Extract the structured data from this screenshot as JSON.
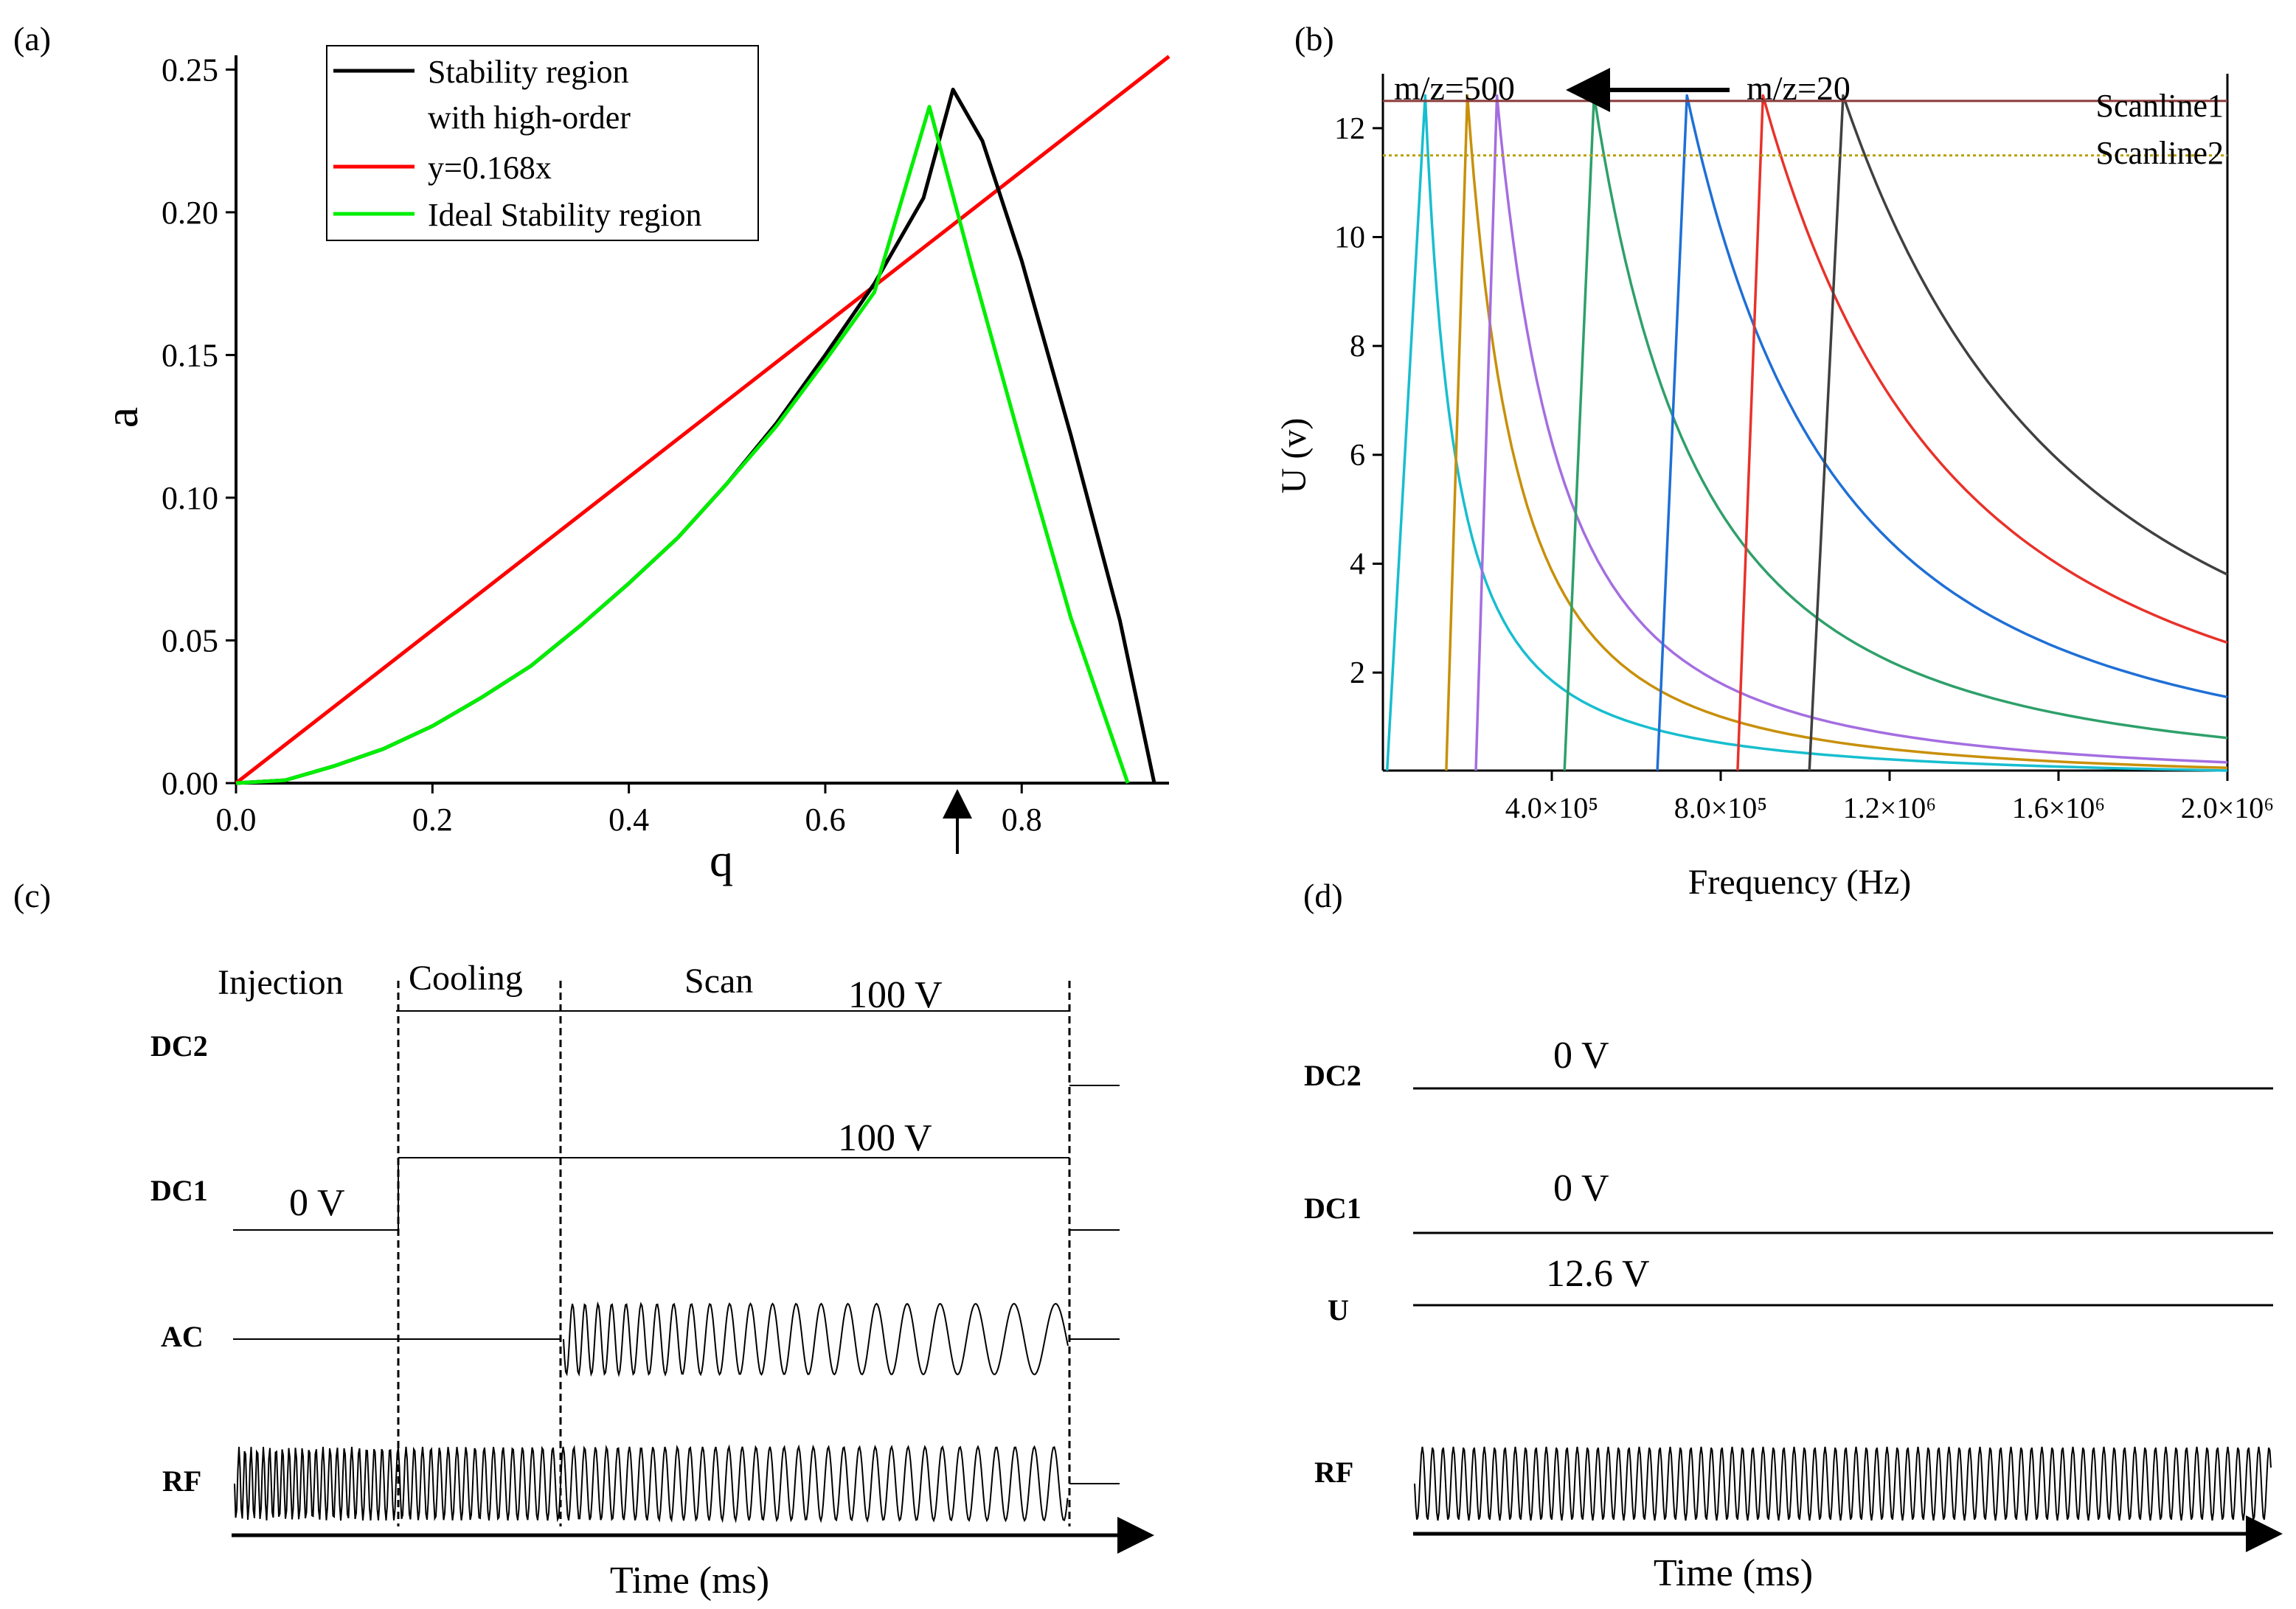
{
  "chart_data": [
    {
      "panel": "(a)",
      "type": "line",
      "xlabel": "q",
      "ylabel": "a",
      "xlim": [
        0,
        0.95
      ],
      "ylim": [
        0,
        0.255
      ],
      "xticks": [
        0.0,
        0.2,
        0.4,
        0.6,
        0.8
      ],
      "xtick_labels": [
        "0.0",
        "0.2",
        "0.4",
        "0.6",
        "0.8"
      ],
      "yticks": [
        0.0,
        0.05,
        0.1,
        0.15,
        0.2,
        0.25
      ],
      "ytick_labels": [
        "0.00",
        "0.05",
        "0.10",
        "0.15",
        "0.20",
        "0.25"
      ],
      "annotation": "arrow at q=0.74",
      "legend_position": "top-right",
      "series": [
        {
          "name": "Stability region with high-order",
          "legend_lines": [
            "Stability region",
            "with high-order"
          ],
          "color": "#000000",
          "x": [
            0.0,
            0.05,
            0.1,
            0.15,
            0.2,
            0.25,
            0.3,
            0.35,
            0.4,
            0.45,
            0.5,
            0.55,
            0.6,
            0.65,
            0.7,
            0.73,
            0.76,
            0.8,
            0.85,
            0.9,
            0.935
          ],
          "y": [
            0.0,
            0.001,
            0.006,
            0.012,
            0.02,
            0.03,
            0.041,
            0.055,
            0.07,
            0.086,
            0.105,
            0.126,
            0.15,
            0.175,
            0.205,
            0.243,
            0.225,
            0.183,
            0.122,
            0.057,
            0.0
          ]
        },
        {
          "name": "y=0.168x",
          "legend_lines": [
            "y=0.168x"
          ],
          "color": "#ff0000",
          "x": [
            0.0,
            0.95
          ],
          "y": [
            0.0,
            0.2546
          ]
        },
        {
          "name": "Ideal Stability region",
          "legend_lines": [
            "Ideal Stability region"
          ],
          "color": "#00ee00",
          "x": [
            0.0,
            0.05,
            0.1,
            0.15,
            0.2,
            0.25,
            0.3,
            0.35,
            0.4,
            0.45,
            0.5,
            0.55,
            0.6,
            0.65,
            0.706,
            0.75,
            0.8,
            0.85,
            0.908
          ],
          "y": [
            0.0,
            0.001,
            0.006,
            0.012,
            0.02,
            0.03,
            0.041,
            0.055,
            0.07,
            0.086,
            0.105,
            0.125,
            0.148,
            0.172,
            0.237,
            0.18,
            0.118,
            0.058,
            0.0
          ]
        }
      ]
    },
    {
      "panel": "(b)",
      "type": "line",
      "xlabel": "Frequency (Hz)",
      "ylabel": "U (v)",
      "xlim": [
        0.0,
        2000000
      ],
      "ylim": [
        0.2,
        13.0
      ],
      "xticks": [
        400000,
        800000,
        1200000,
        1600000,
        2000000
      ],
      "xtick_labels": [
        "4.0×10⁵",
        "8.0×10⁵",
        "1.2×10⁶",
        "1.6×10⁶",
        "2.0×10⁶"
      ],
      "yticks": [
        2,
        4,
        6,
        8,
        10,
        12
      ],
      "ytick_labels": [
        "2",
        "4",
        "6",
        "8",
        "10",
        "12"
      ],
      "annotations": [
        "m/z=500",
        "m/z=20"
      ],
      "scanlines": [
        {
          "name": "Scanline1",
          "y": 12.5,
          "color": "#8b3a3a"
        },
        {
          "name": "Scanline2",
          "y": 11.5,
          "color": "#b8a000"
        }
      ],
      "series": [
        {
          "name": "cyan",
          "color": "#17becf",
          "start": 10000,
          "peak_x": 100000,
          "peak_y": 12.6,
          "end_y": 0.2
        },
        {
          "name": "orange",
          "color": "#c8900a",
          "start": 150000,
          "peak_x": 200000,
          "peak_y": 12.6,
          "end_y": 0.25
        },
        {
          "name": "purple",
          "color": "#a46ee0",
          "start": 220000,
          "peak_x": 270000,
          "peak_y": 12.6,
          "end_y": 0.35
        },
        {
          "name": "green",
          "color": "#2ea06a",
          "start": 430000,
          "peak_x": 500000,
          "peak_y": 12.6,
          "end_y": 0.8
        },
        {
          "name": "blue",
          "color": "#1f6fd6",
          "start": 650000,
          "peak_x": 720000,
          "peak_y": 12.6,
          "end_y": 1.55
        },
        {
          "name": "red",
          "color": "#e8322a",
          "start": 840000,
          "peak_x": 900000,
          "peak_y": 12.6,
          "end_y": 2.55
        },
        {
          "name": "gray",
          "color": "#404040",
          "start": 1010000,
          "peak_x": 1090000,
          "peak_y": 12.6,
          "end_y": 3.8
        }
      ]
    },
    {
      "panel": "(c)",
      "type": "timing",
      "xlabel": "Time (ms)",
      "phases": [
        "Injection",
        "Cooling",
        "Scan"
      ],
      "signals": [
        {
          "name": "DC2",
          "value_label": "100 V"
        },
        {
          "name": "DC1",
          "value_label": "100 V",
          "initial_label": "0 V"
        },
        {
          "name": "AC"
        },
        {
          "name": "RF"
        }
      ]
    },
    {
      "panel": "(d)",
      "type": "timing",
      "xlabel": "Time (ms)",
      "signals": [
        {
          "name": "DC2",
          "value_label": "0 V"
        },
        {
          "name": "DC1",
          "value_label": "0 V"
        },
        {
          "name": "U",
          "value_label": "12.6 V"
        },
        {
          "name": "RF"
        }
      ]
    }
  ]
}
